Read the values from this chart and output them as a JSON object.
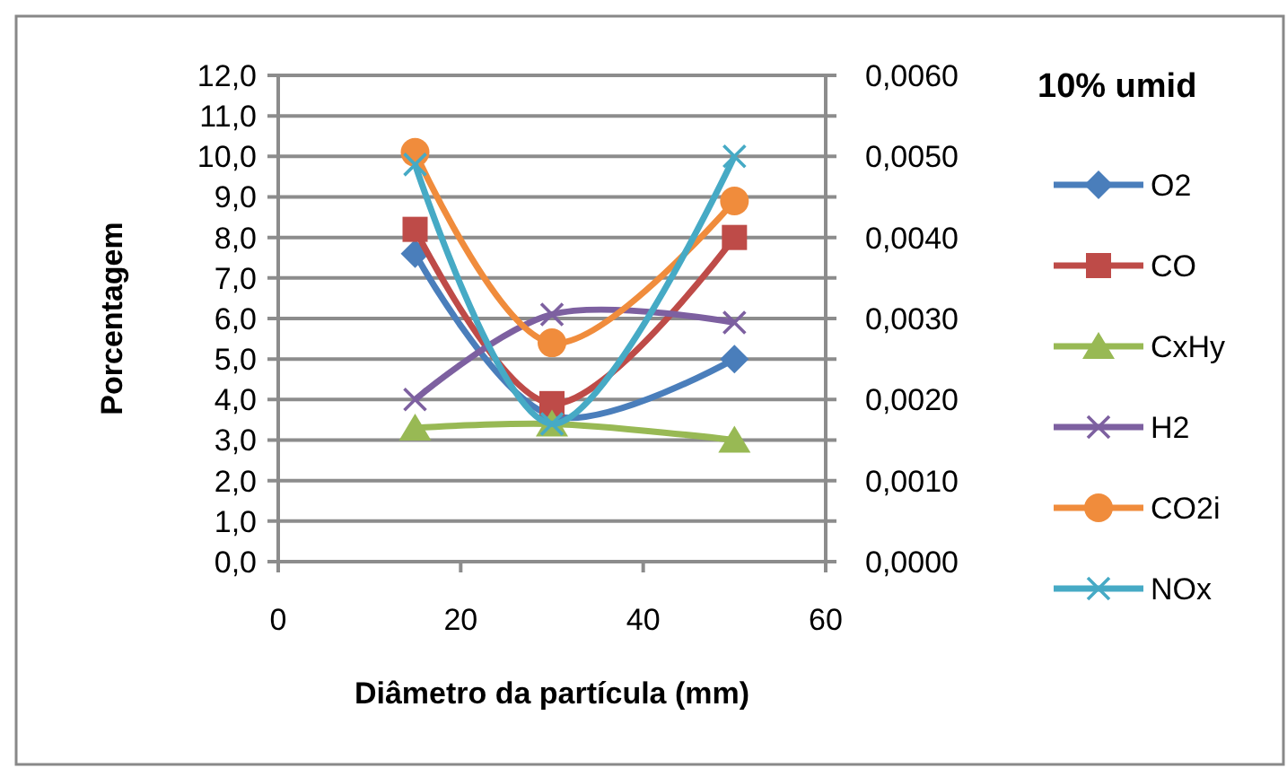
{
  "chart_data": {
    "type": "line",
    "title": "10% umid",
    "xlabel": "Diâmetro da partícula (mm)",
    "ylabel": "Porcentagem",
    "x": [
      15,
      30,
      50
    ],
    "xlim": [
      0,
      60
    ],
    "xticks": [
      0,
      20,
      40,
      60
    ],
    "ylim": [
      0,
      12
    ],
    "yticks": [
      {
        "value": 0,
        "label": "0,0"
      },
      {
        "value": 1,
        "label": "1,0"
      },
      {
        "value": 2,
        "label": "2,0"
      },
      {
        "value": 3,
        "label": "3,0"
      },
      {
        "value": 4,
        "label": "4,0"
      },
      {
        "value": 5,
        "label": "5,0"
      },
      {
        "value": 6,
        "label": "6,0"
      },
      {
        "value": 7,
        "label": "7,0"
      },
      {
        "value": 8,
        "label": "8,0"
      },
      {
        "value": 9,
        "label": "9,0"
      },
      {
        "value": 10,
        "label": "10,0"
      },
      {
        "value": 11,
        "label": "11,0"
      },
      {
        "value": 12,
        "label": "12,0"
      }
    ],
    "y2lim": [
      0,
      0.006
    ],
    "y2ticks": [
      {
        "value": 0,
        "label": "0,0000"
      },
      {
        "value": 0.001,
        "label": "0,0010"
      },
      {
        "value": 0.002,
        "label": "0,0020"
      },
      {
        "value": 0.003,
        "label": "0,0030"
      },
      {
        "value": 0.004,
        "label": "0,0040"
      },
      {
        "value": 0.005,
        "label": "0,0050"
      },
      {
        "value": 0.006,
        "label": "0,0060"
      }
    ],
    "grid": "y",
    "legend": "right",
    "series": [
      {
        "name": "O2",
        "color": "#4a7ebb",
        "marker": "diamond",
        "values": [
          7.6,
          3.6,
          5.0
        ]
      },
      {
        "name": "CO",
        "color": "#be4b48",
        "marker": "square",
        "values": [
          8.2,
          3.9,
          8.0
        ]
      },
      {
        "name": "CxHy",
        "color": "#98b954",
        "marker": "triangle",
        "values": [
          3.3,
          3.4,
          3.0
        ]
      },
      {
        "name": "H2",
        "color": "#7d60a0",
        "marker": "cross",
        "values": [
          4.0,
          6.1,
          5.9
        ]
      },
      {
        "name": "CO2i",
        "color": "#f08c3c",
        "marker": "circle",
        "values": [
          10.1,
          5.4,
          8.9
        ]
      },
      {
        "name": "NOx",
        "color": "#46aac5",
        "marker": "cross",
        "axis": "y2",
        "values": [
          0.0049,
          0.0017,
          0.005
        ]
      }
    ]
  }
}
